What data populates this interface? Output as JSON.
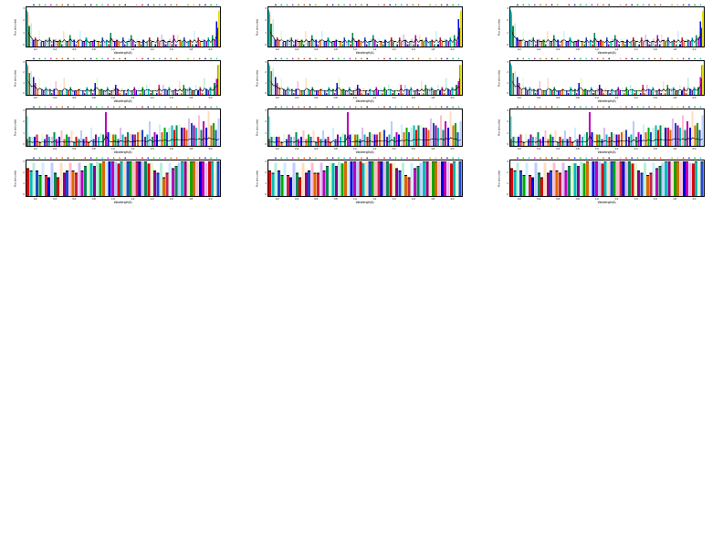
{
  "page": {
    "background": "#ffffff",
    "description": "Plot-only output window: 3 columns x 4 rows of small multi-color spectra panels on a white page, lower two-thirds of page empty",
    "note": "All axis text, tick numbers and labels in the source screenshot are rendered at ~3px and are not legible; label strings below are best-effort readings and tick values are approximations."
  },
  "palette": {
    "saturated": [
      "#dd0000",
      "#0000dd",
      "#00aa00",
      "#00bbbb",
      "#bb00bb",
      "#dd6600",
      "#880088",
      "#008855",
      "#cc2244",
      "#2244cc"
    ],
    "pastel": [
      "#ffbbcc",
      "#bbccff",
      "#bbeedd",
      "#ddbbee",
      "#ffddbb",
      "#cceeff",
      "#ddffcc"
    ],
    "dot_markers": [
      "#cc0000",
      "#0000cc",
      "#00aa00",
      "#00bbbb",
      "#bb00bb",
      "#996600",
      "#dd4400",
      "#111111",
      "#88aa00",
      "#ff88aa"
    ],
    "trace": "#000000",
    "edge_left_spike": "#00cccc",
    "edge_right_spike": "#dddd00",
    "edge_right_secondary": "#aa0000",
    "frame": "#000000"
  },
  "chart_data": [
    {
      "id": "col1-row1",
      "column": 1,
      "row": 1,
      "type": "bar",
      "style": "spectrum",
      "title": "",
      "xlabel": "Wavelength(A)",
      "ylabel": "Flux (arb.units)",
      "yticks": [
        "3",
        "2",
        "1",
        "0"
      ],
      "xticks": [
        "0.2",
        "0.4",
        "0.6",
        "0.8",
        "1.0",
        "1.2",
        "1.4",
        "1.6",
        "1.8",
        "2.0"
      ],
      "edge_spikes": true,
      "profile": "f96343422324132231422523134224122322141316223214122531221312422142331221513324123141422324153bf"
    },
    {
      "id": "col1-row2",
      "column": 1,
      "row": 2,
      "type": "bar",
      "style": "spectrum",
      "title": "",
      "xlabel": "Wavelength(A)",
      "ylabel": "Flux (arb.units)",
      "yticks": [
        "3",
        "2",
        "1",
        "0"
      ],
      "xticks": [
        "0.2",
        "0.4",
        "0.6",
        "0.8",
        "1.0",
        "1.2",
        "1.4",
        "1.6",
        "1.8",
        "2.0"
      ],
      "edge_spikes": true,
      "profile": "fb7963532423134222532412232214131652321412253122131242214233122151332412314153242232415324268f"
    },
    {
      "id": "col1-row3",
      "column": 1,
      "row": 3,
      "type": "bar",
      "style": "peaks",
      "title": "",
      "xlabel": "Wavelength(A)",
      "ylabel": "Flux (arb.units)",
      "yticks": [
        "3",
        "2",
        "1",
        "0"
      ],
      "xticks": [
        "0.2",
        "0.4",
        "0.6",
        "0.8",
        "1.0",
        "1.2",
        "1.4",
        "1.6",
        "1.8",
        "2.0"
      ],
      "edge_spikes": false,
      "spike_fraction": 0.4,
      "profile": "34345243543634535452435342635445f6455365464556574584657686697978879a98a7b8c9a79"
    },
    {
      "id": "col1-row4",
      "column": 1,
      "row": 4,
      "type": "bar",
      "style": "dense",
      "title": "",
      "xlabel": "Wavelength(A)",
      "ylabel": "Flux (arb.units)",
      "yticks": [
        "3",
        "2",
        "1",
        "0"
      ],
      "xticks": [
        "0.2",
        "0.4",
        "0.6",
        "0.8",
        "1.0",
        "1.2",
        "1.4",
        "1.6",
        "1.8",
        "2.0"
      ],
      "edge_spikes": false,
      "profile": "cbab9a989a89ab9bacbdcedfefffffefffffffffecba98abcdeffffffffeffff"
    },
    {
      "id": "col2-row1",
      "column": 2,
      "row": 1,
      "type": "bar",
      "style": "spectrum",
      "title": "",
      "xlabel": "Wavelength(A)",
      "ylabel": "Flux (arb.units)",
      "yticks": [
        "3",
        "2",
        "1",
        "0"
      ],
      "xticks": [
        "0.2",
        "0.4",
        "0.6",
        "0.8",
        "1.0",
        "1.2",
        "1.4",
        "1.6",
        "1.8",
        "2.0"
      ],
      "edge_spikes": true,
      "profile": "fa7343422324132231422523134224122322141316223214122531221312422142331221513324123141422324152cf"
    },
    {
      "id": "col2-row2",
      "column": 2,
      "row": 2,
      "type": "bar",
      "style": "spectrum",
      "title": "",
      "xlabel": "Wavelength(A)",
      "ylabel": "Flux (arb.units)",
      "yticks": [
        "3",
        "2",
        "1",
        "0"
      ],
      "xticks": [
        "0.2",
        "0.4",
        "0.6",
        "0.8",
        "1.0",
        "1.2",
        "1.4",
        "1.6",
        "1.8",
        "2.0"
      ],
      "edge_spikes": true,
      "profile": "fc8964532423134222532412232214131652321412253122131242214233122151332412314153242232415324257f"
    },
    {
      "id": "col2-row3",
      "column": 2,
      "row": 3,
      "type": "bar",
      "style": "peaks",
      "title": "",
      "xlabel": "Wavelength(A)",
      "ylabel": "Flux (arb.units)",
      "yticks": [
        "3",
        "2",
        "1",
        "0"
      ],
      "xticks": [
        "0.2",
        "0.4",
        "0.6",
        "0.8",
        "1.0",
        "1.2",
        "1.4",
        "1.6",
        "1.8",
        "2.0"
      ],
      "edge_spikes": false,
      "spike_fraction": 0.4,
      "profile": "34344243543634535452435342635445f5455365464556574584657686697978879a98a7b8c9a68"
    },
    {
      "id": "col2-row4",
      "column": 2,
      "row": 4,
      "type": "bar",
      "style": "dense",
      "title": "",
      "xlabel": "Wavelength(A)",
      "ylabel": "Flux (arb.units)",
      "yticks": [
        "3",
        "2",
        "1",
        "0"
      ],
      "xticks": [
        "0.2",
        "0.4",
        "0.6",
        "0.8",
        "1.0",
        "1.2",
        "1.4",
        "1.6",
        "1.8",
        "2.0"
      ],
      "edge_spikes": false,
      "profile": "babb9a989a89ab9aacbdcedfeffffffeffffffffedcba98acdefffffffffefef"
    },
    {
      "id": "col3-row1",
      "column": 3,
      "row": 1,
      "type": "bar",
      "style": "spectrum",
      "title": "",
      "xlabel": "Wavelength(A)",
      "ylabel": "Flux (arb.units)",
      "yticks": [
        "3",
        "2",
        "1",
        "0"
      ],
      "xticks": [
        "0.2",
        "0.4",
        "0.6",
        "0.8",
        "1.0",
        "1.2",
        "1.4",
        "1.6",
        "1.8",
        "2.0"
      ],
      "edge_spikes": true,
      "profile": "f96433422324132231422523134224122322141316223214122531221312422142331221513324123141422324154bf"
    },
    {
      "id": "col3-row2",
      "column": 3,
      "row": 2,
      "type": "bar",
      "style": "spectrum",
      "title": "",
      "xlabel": "Wavelength(A)",
      "ylabel": "Flux (arb.units)",
      "yticks": [
        "3",
        "2",
        "1",
        "0"
      ],
      "xticks": [
        "0.2",
        "0.4",
        "0.6",
        "0.8",
        "1.0",
        "1.2",
        "1.4",
        "1.6",
        "1.8",
        "2.0"
      ],
      "edge_spikes": true,
      "profile": "fb7963542423134222532412232214131652321412253122131242214233122151332412314153242232415324249f"
    },
    {
      "id": "col3-row3",
      "column": 3,
      "row": 3,
      "type": "bar",
      "style": "peaks",
      "title": "",
      "xlabel": "Wavelength(A)",
      "ylabel": "Flux (arb.units)",
      "yticks": [
        "3",
        "2",
        "1",
        "0"
      ],
      "xticks": [
        "0.2",
        "0.4",
        "0.6",
        "0.8",
        "1.0",
        "1.2",
        "1.4",
        "1.6",
        "1.8",
        "2.0"
      ],
      "edge_spikes": false,
      "spike_fraction": 0.4,
      "profile": "34345243543634535452435342635446f6455365464556574584657686697978879a98a7b8c9a7a"
    },
    {
      "id": "col3-row4",
      "column": 3,
      "row": 4,
      "type": "bar",
      "style": "dense",
      "title": "",
      "xlabel": "Wavelength(A)",
      "ylabel": "Flux (arb.units)",
      "yticks": [
        "3",
        "2",
        "1",
        "0"
      ],
      "xticks": [
        "0.2",
        "0.4",
        "0.6",
        "0.8",
        "1.0",
        "1.2",
        "1.4",
        "1.6",
        "1.8",
        "2.0"
      ],
      "edge_spikes": false,
      "profile": "cbab9a98aa89ab9bacbdcedfefffffefffffffffecba99abcdeffffffffeefff"
    }
  ]
}
